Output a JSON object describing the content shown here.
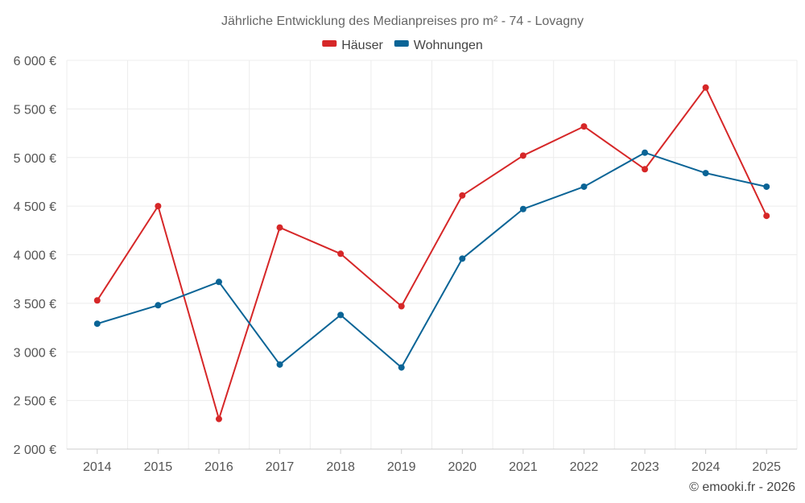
{
  "chart_data": {
    "type": "line",
    "title": "Jährliche Entwicklung des Medianpreises pro m² - 74 - Lovagny",
    "categories": [
      "2014",
      "2015",
      "2016",
      "2017",
      "2018",
      "2019",
      "2020",
      "2021",
      "2022",
      "2023",
      "2024",
      "2025"
    ],
    "series": [
      {
        "name": "Häuser",
        "color": "#d62728",
        "values": [
          3530,
          4500,
          2310,
          4280,
          4010,
          3470,
          4610,
          5020,
          5320,
          4880,
          5720,
          4400
        ]
      },
      {
        "name": "Wohnungen",
        "color": "#0a6496",
        "values": [
          3290,
          3480,
          3720,
          2870,
          3380,
          2840,
          3960,
          4470,
          4700,
          5050,
          4840,
          4700
        ]
      }
    ],
    "ylim": [
      2000,
      6000
    ],
    "yticks": [
      2000,
      2500,
      3000,
      3500,
      4000,
      4500,
      5000,
      5500,
      6000
    ],
    "ytick_labels": [
      "2 000 €",
      "2 500 €",
      "3 000 €",
      "3 500 €",
      "4 000 €",
      "4 500 €",
      "5 000 €",
      "5 500 €",
      "6 000 €"
    ],
    "xlabel": "",
    "ylabel": "",
    "grid": true,
    "legend_position": "top-center"
  },
  "credit": "© emooki.fr - 2026"
}
